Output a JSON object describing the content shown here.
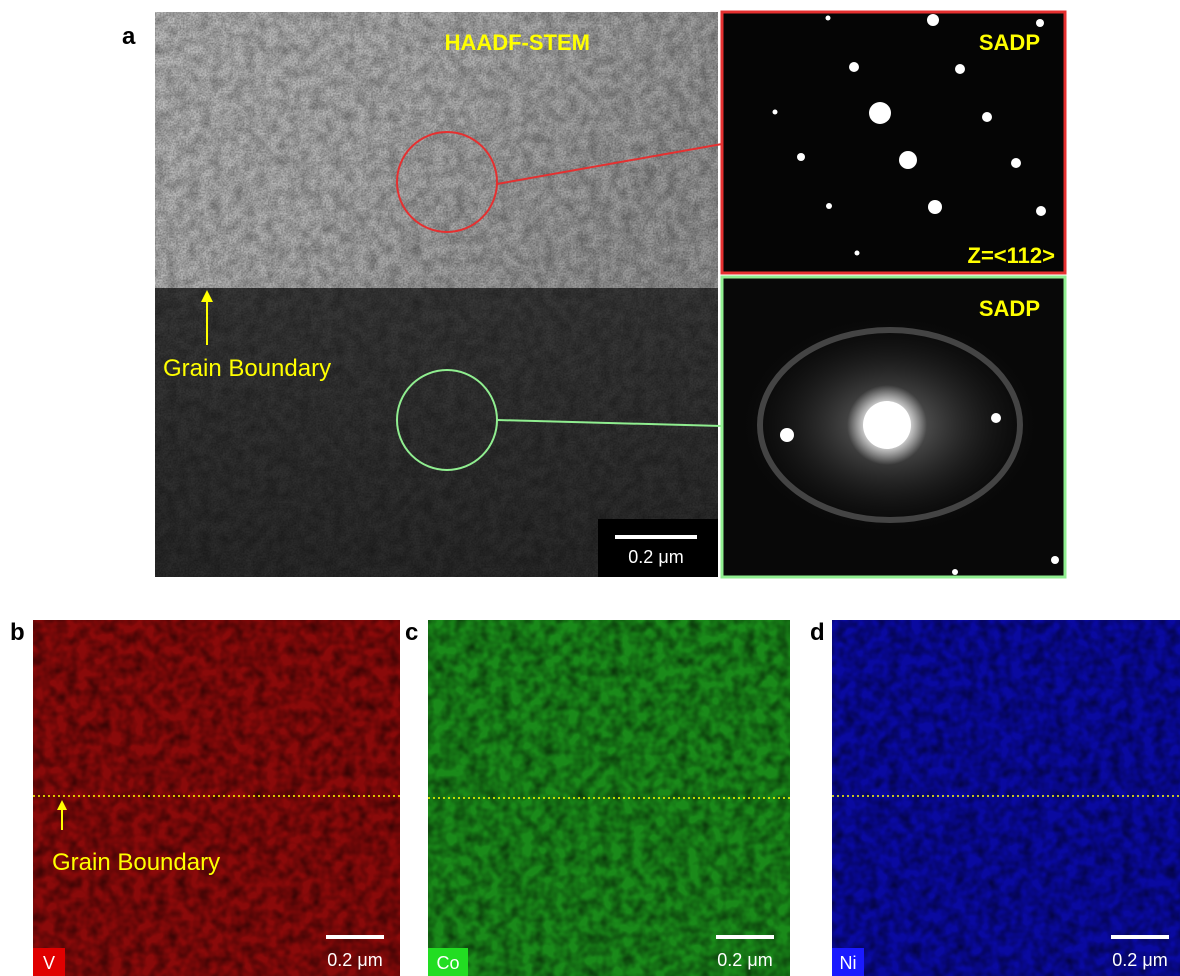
{
  "panel_a": {
    "label": "a",
    "haadf": {
      "title": "HAADF-STEM",
      "annotation": "Grain Boundary",
      "scale_bar": "0.2 μm"
    },
    "sadp_top": {
      "title": "SADP",
      "zone_axis": "Z=<112>"
    },
    "sadp_bottom": {
      "title": "SADP"
    }
  },
  "maps": [
    {
      "label": "b",
      "element": "V",
      "annotation": "Grain Boundary",
      "scale_bar": "0.2 μm"
    },
    {
      "label": "c",
      "element": "Co",
      "scale_bar": "0.2 μm"
    },
    {
      "label": "d",
      "element": "Ni",
      "scale_bar": "0.2 μm"
    }
  ]
}
